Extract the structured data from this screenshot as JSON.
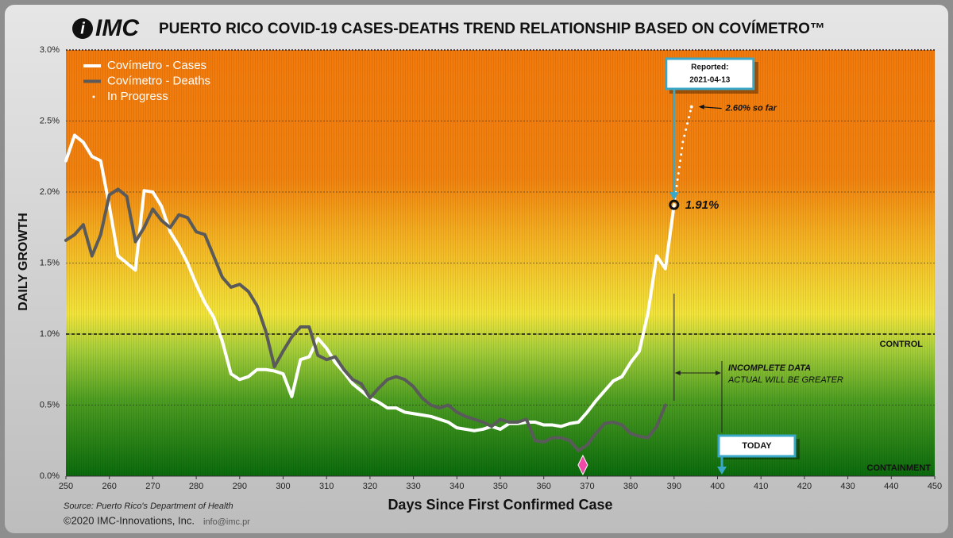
{
  "chart_data": {
    "type": "line",
    "logo": "IMC",
    "title": "PUERTO RICO COVID-19 CASES-DEATHS TREND RELATIONSHIP BASED ON COVÍMETRO™",
    "y_label": "DAILY GROWTH",
    "x_label": "Days Since First Confirmed Case",
    "source": "Source: Puerto Rico's Department of Health",
    "copyright": "©2020 IMC-Innovations, Inc.",
    "contact": "info@imc.pr",
    "xlim": [
      250,
      450
    ],
    "xticks": [
      250,
      260,
      270,
      280,
      290,
      300,
      310,
      320,
      330,
      340,
      350,
      360,
      370,
      380,
      390,
      400,
      410,
      420,
      430,
      440,
      450
    ],
    "ylim": [
      0,
      3
    ],
    "yticks": [
      {
        "value": 0,
        "label": "0.0%"
      },
      {
        "value": 0.5,
        "label": "0.5%"
      },
      {
        "value": 1,
        "label": "1.0%"
      },
      {
        "value": 1.5,
        "label": "1.5%"
      },
      {
        "value": 2,
        "label": "2.0%"
      },
      {
        "value": 2.5,
        "label": "2.5%"
      },
      {
        "value": 3,
        "label": "3.0%"
      }
    ],
    "grid": true,
    "legend": "top-left",
    "x": [
      250,
      252,
      254,
      256,
      258,
      260,
      262,
      264,
      266,
      268,
      270,
      272,
      274,
      276,
      278,
      280,
      282,
      284,
      286,
      288,
      290,
      292,
      294,
      296,
      298,
      300,
      302,
      304,
      306,
      308,
      310,
      312,
      314,
      316,
      318,
      320,
      322,
      324,
      326,
      328,
      330,
      332,
      334,
      336,
      338,
      340,
      342,
      344,
      346,
      348,
      350,
      352,
      354,
      356,
      358,
      360,
      362,
      364,
      366,
      368,
      370,
      372,
      374,
      376,
      378,
      380,
      382,
      384,
      386,
      388,
      390,
      392,
      394
    ],
    "series": [
      {
        "name": "Covímetro - Cases",
        "color": "#ffffff",
        "style": "solid",
        "values": [
          2.22,
          2.4,
          2.35,
          2.25,
          2.22,
          1.9,
          1.55,
          1.5,
          1.45,
          2.01,
          2.0,
          1.9,
          1.72,
          1.62,
          1.5,
          1.35,
          1.22,
          1.12,
          0.95,
          0.72,
          0.68,
          0.7,
          0.75,
          0.75,
          0.74,
          0.72,
          0.56,
          0.82,
          0.84,
          0.97,
          0.9,
          0.8,
          0.73,
          0.65,
          0.6,
          0.55,
          0.52,
          0.48,
          0.48,
          0.45,
          0.44,
          0.43,
          0.42,
          0.4,
          0.38,
          0.34,
          0.33,
          0.32,
          0.33,
          0.35,
          0.33,
          0.37,
          0.37,
          0.38,
          0.38,
          0.36,
          0.36,
          0.35,
          0.37,
          0.38,
          0.45,
          0.53,
          0.6,
          0.67,
          0.7,
          0.8,
          0.88,
          1.15,
          1.55,
          1.46,
          1.91,
          null,
          null
        ]
      },
      {
        "name": "Covímetro - Deaths",
        "color": "#5a5a5a",
        "style": "solid",
        "values": [
          1.66,
          1.7,
          1.77,
          1.55,
          1.7,
          1.98,
          2.02,
          1.97,
          1.65,
          1.75,
          1.88,
          1.8,
          1.75,
          1.84,
          1.82,
          1.72,
          1.7,
          1.55,
          1.4,
          1.33,
          1.35,
          1.3,
          1.2,
          1.02,
          0.77,
          0.88,
          0.98,
          1.05,
          1.05,
          0.85,
          0.82,
          0.84,
          0.75,
          0.68,
          0.65,
          0.55,
          0.62,
          0.68,
          0.7,
          0.68,
          0.63,
          0.55,
          0.5,
          0.48,
          0.5,
          0.45,
          0.42,
          0.4,
          0.38,
          0.35,
          0.4,
          0.38,
          0.38,
          0.4,
          0.25,
          0.24,
          0.27,
          0.27,
          0.25,
          0.18,
          0.22,
          0.3,
          0.37,
          0.38,
          0.36,
          0.3,
          0.28,
          0.27,
          0.35,
          0.5,
          null,
          null,
          null
        ]
      },
      {
        "name": "In Progress",
        "color": "#ffffff",
        "style": "dotted",
        "values": [
          null,
          null,
          null,
          null,
          null,
          null,
          null,
          null,
          null,
          null,
          null,
          null,
          null,
          null,
          null,
          null,
          null,
          null,
          null,
          null,
          null,
          null,
          null,
          null,
          null,
          null,
          null,
          null,
          null,
          null,
          null,
          null,
          null,
          null,
          null,
          null,
          null,
          null,
          null,
          null,
          null,
          null,
          null,
          null,
          null,
          null,
          null,
          null,
          null,
          null,
          null,
          null,
          null,
          null,
          null,
          null,
          null,
          null,
          null,
          null,
          null,
          null,
          null,
          null,
          null,
          null,
          null,
          null,
          null,
          null,
          1.91,
          2.35,
          2.6
        ]
      }
    ],
    "annotations": {
      "reported_title": "Reported:",
      "reported_date": "2021-04-13",
      "reported_day": 390,
      "reported_value": 1.91,
      "reported_label": "1.91%",
      "progress_value": 2.6,
      "progress_day": 394,
      "progress_label": "2.60% so far",
      "control_level": 1,
      "control_label": "CONTROL",
      "containment_label": "CONTAINMENT",
      "incomplete_title": "INCOMPLETE DATA",
      "incomplete_note": "ACTUAL WILL BE GREATER",
      "today_label": "TODAY",
      "today_day": 401,
      "low_day": 369
    }
  }
}
